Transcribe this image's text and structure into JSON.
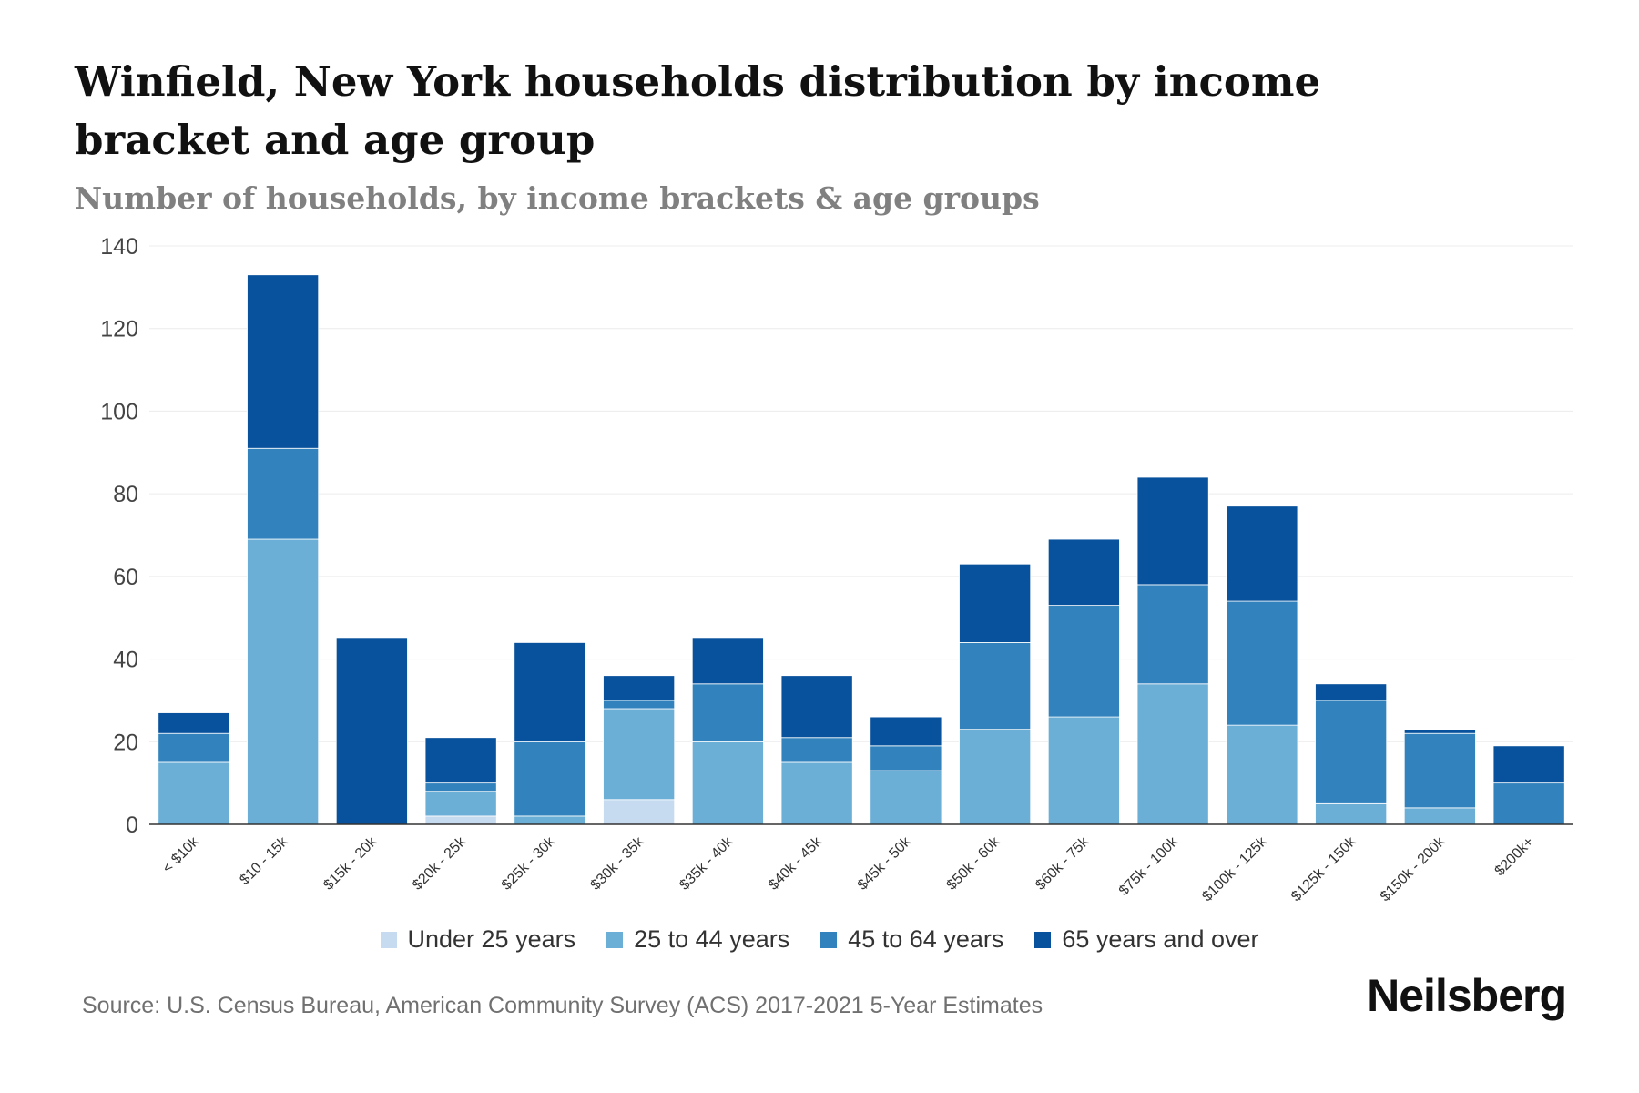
{
  "header": {
    "title": "Winfield, New York households distribution by income bracket and age group",
    "subtitle": "Number of households, by income brackets & age groups"
  },
  "footer": {
    "source": "Source: U.S. Census Bureau, American Community Survey (ACS) 2017-2021 5-Year Estimates",
    "brand": "Neilsberg"
  },
  "legend": {
    "items": [
      {
        "label": "Under 25 years",
        "color": "#c6dbef"
      },
      {
        "label": "25 to 44 years",
        "color": "#6baed6"
      },
      {
        "label": "45 to 64 years",
        "color": "#3182bd"
      },
      {
        "label": "65 years and over",
        "color": "#08519c"
      }
    ]
  },
  "chart_data": {
    "type": "bar",
    "stacked": true,
    "title": "Winfield, New York households distribution by income bracket and age group",
    "subtitle": "Number of households, by income brackets & age groups",
    "xlabel": "",
    "ylabel": "",
    "ylim": [
      0,
      140
    ],
    "yticks": [
      0,
      20,
      40,
      60,
      80,
      100,
      120,
      140
    ],
    "grid": true,
    "legend_position": "bottom",
    "categories": [
      "< $10k",
      "$10 - 15k",
      "$15k - 20k",
      "$20k - 25k",
      "$25k - 30k",
      "$30k - 35k",
      "$35k - 40k",
      "$40k - 45k",
      "$45k - 50k",
      "$50k - 60k",
      "$60k - 75k",
      "$75k - 100k",
      "$100k - 125k",
      "$125k - 150k",
      "$150k - 200k",
      "$200k+"
    ],
    "series": [
      {
        "name": "Under 25 years",
        "color": "#c6dbef",
        "values": [
          0,
          0,
          0,
          2,
          0,
          6,
          0,
          0,
          0,
          0,
          0,
          0,
          0,
          0,
          0,
          0
        ]
      },
      {
        "name": "25 to 44 years",
        "color": "#6baed6",
        "values": [
          15,
          69,
          0,
          6,
          2,
          22,
          20,
          15,
          13,
          23,
          26,
          34,
          24,
          5,
          4,
          0
        ]
      },
      {
        "name": "45 to 64 years",
        "color": "#3182bd",
        "values": [
          7,
          22,
          0,
          2,
          18,
          2,
          14,
          6,
          6,
          21,
          27,
          24,
          30,
          25,
          18,
          10
        ]
      },
      {
        "name": "65 years and over",
        "color": "#08519c",
        "values": [
          5,
          42,
          45,
          11,
          24,
          6,
          11,
          15,
          7,
          19,
          16,
          26,
          23,
          4,
          1,
          9
        ]
      }
    ]
  }
}
